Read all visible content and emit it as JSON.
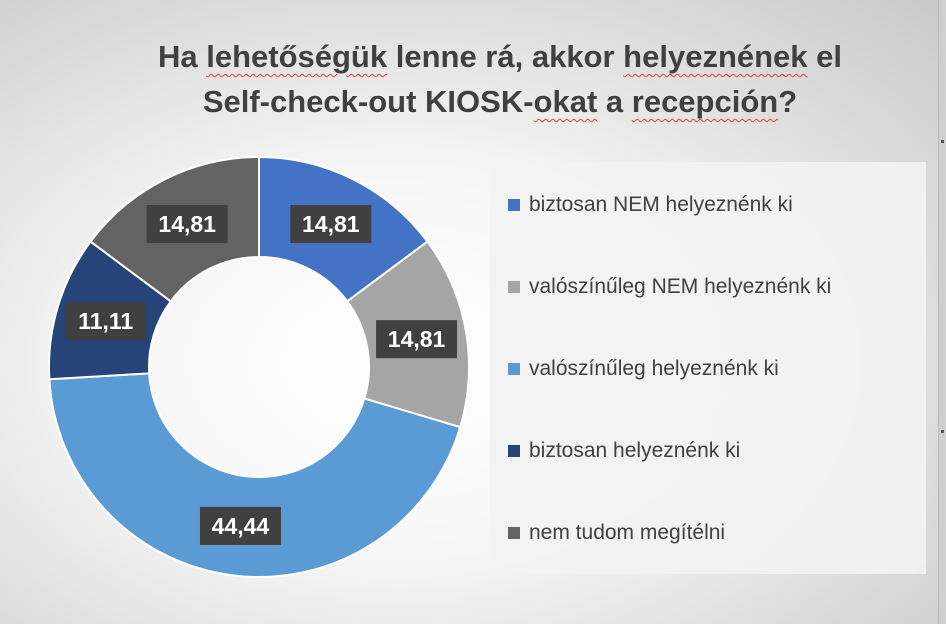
{
  "chart_data": {
    "type": "pie",
    "title_parts": [
      [
        {
          "text": "Ha ",
          "squiggle": false
        },
        {
          "text": "lehetőségük",
          "squiggle": true
        },
        {
          "text": " lenne rá, akkor ",
          "squiggle": false
        },
        {
          "text": "helyeznének",
          "squiggle": true
        },
        {
          "text": " el",
          "squiggle": false
        }
      ],
      [
        {
          "text": "Self-check-out KIOSK-",
          "squiggle": false
        },
        {
          "text": "okat",
          "squiggle": true
        },
        {
          "text": " a ",
          "squiggle": false
        },
        {
          "text": "recepción",
          "squiggle": true
        },
        {
          "text": "?",
          "squiggle": false
        }
      ]
    ],
    "donut": true,
    "start_angle_deg": 0,
    "direction": "clockwise",
    "legend_position": "right",
    "slices": [
      {
        "label": "biztosan NEM helyeznénk ki",
        "value": 14.81,
        "value_label": "14,81",
        "color": "#4472C4"
      },
      {
        "label": "valószínűleg NEM helyeznénk ki",
        "value": 14.81,
        "value_label": "14,81",
        "color": "#A5A5A5"
      },
      {
        "label": "valószínűleg helyeznénk ki",
        "value": 44.44,
        "value_label": "44,44",
        "color": "#5B9BD5"
      },
      {
        "label": "biztosan helyeznénk ki",
        "value": 11.11,
        "value_label": "11,11",
        "color": "#264478"
      },
      {
        "label": "nem tudom megítélni",
        "value": 14.81,
        "value_label": "14,81",
        "color": "#636363"
      }
    ]
  }
}
